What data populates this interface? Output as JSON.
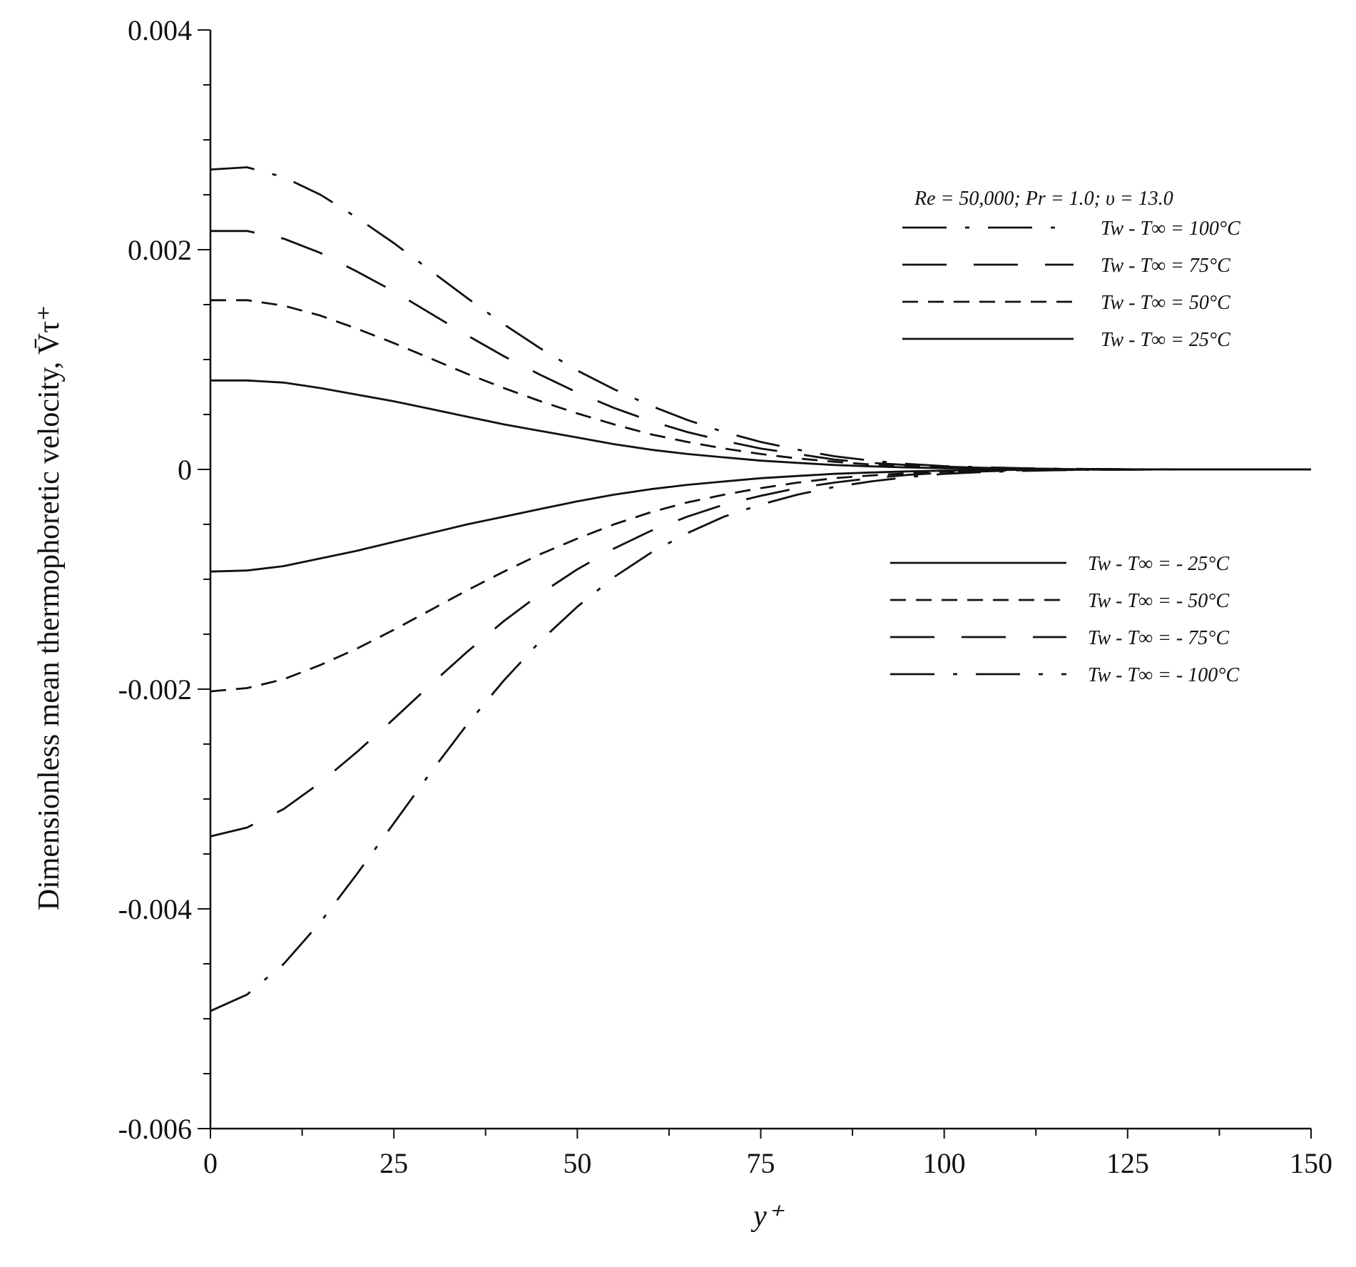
{
  "chart_data": {
    "type": "line",
    "title": "",
    "xlabel": "y⁺",
    "ylabel": "Dimensionless mean thermophoretic velocity, V̄τ⁺",
    "xlim": [
      0,
      150
    ],
    "ylim": [
      -0.006,
      0.004
    ],
    "x_ticks": [
      "0",
      "25",
      "50",
      "75",
      "100",
      "125",
      "150"
    ],
    "y_ticks": [
      "0.004",
      "0.002",
      "0",
      "-0.002",
      "-0.004",
      "-0.006"
    ],
    "grid": false,
    "legend_title": "Re = 50,000; Pr = 1.0; υ = 13.0",
    "x": [
      0,
      5,
      10,
      15,
      20,
      25,
      30,
      35,
      40,
      45,
      50,
      55,
      60,
      65,
      70,
      75,
      80,
      85,
      90,
      95,
      100,
      105,
      110,
      115,
      120,
      125,
      130,
      135,
      140,
      145,
      150
    ],
    "series": [
      {
        "name": "Tw - T∞ = 100°C",
        "style": "dash-dot",
        "values": [
          0.00273,
          0.00275,
          0.00266,
          0.0025,
          0.00229,
          0.00206,
          0.00181,
          0.00156,
          0.00132,
          0.0011,
          0.0009,
          0.00073,
          0.00058,
          0.00045,
          0.00034,
          0.00025,
          0.00018,
          0.00012,
          8e-05,
          5e-05,
          3e-05,
          2e-05,
          1.2e-05,
          7e-06,
          4e-06,
          2e-06,
          1e-06,
          0,
          0,
          0,
          0
        ]
      },
      {
        "name": "Tw - T∞ = 75°C",
        "style": "long-dash",
        "values": [
          0.00217,
          0.00217,
          0.0021,
          0.00197,
          0.0018,
          0.00162,
          0.00142,
          0.00122,
          0.00103,
          0.00086,
          0.0007,
          0.00056,
          0.00044,
          0.00034,
          0.00026,
          0.00019,
          0.00014,
          9e-05,
          6e-05,
          4e-05,
          2.5e-05,
          1.5e-05,
          9e-06,
          5e-06,
          3e-06,
          1e-06,
          0,
          0,
          0,
          0,
          0
        ]
      },
      {
        "name": "Tw - T∞ = 50°C",
        "style": "dash",
        "values": [
          0.00154,
          0.00154,
          0.00149,
          0.0014,
          0.00128,
          0.00115,
          0.00101,
          0.00087,
          0.00074,
          0.00062,
          0.00051,
          0.00041,
          0.00032,
          0.00025,
          0.00019,
          0.00014,
          0.0001,
          7e-05,
          4.5e-05,
          3e-05,
          1.8e-05,
          1.1e-05,
          6e-06,
          3e-06,
          2e-06,
          1e-06,
          0,
          0,
          0,
          0,
          0
        ]
      },
      {
        "name": "Tw - T∞ = 25°C",
        "style": "solid",
        "values": [
          0.00081,
          0.00081,
          0.00079,
          0.00074,
          0.00068,
          0.00062,
          0.00055,
          0.00048,
          0.00041,
          0.00035,
          0.00029,
          0.00023,
          0.00018,
          0.00014,
          0.00011,
          8e-05,
          6e-05,
          4e-05,
          2.8e-05,
          1.8e-05,
          1.1e-05,
          7e-06,
          4e-06,
          2e-06,
          1e-06,
          0,
          0,
          0,
          0,
          0,
          0
        ]
      },
      {
        "name": "Tw - T∞ = - 25°C",
        "style": "solid",
        "values": [
          -0.00093,
          -0.00092,
          -0.00088,
          -0.00081,
          -0.00074,
          -0.00066,
          -0.00058,
          -0.0005,
          -0.00043,
          -0.00036,
          -0.00029,
          -0.00023,
          -0.00018,
          -0.00014,
          -0.00011,
          -8e-05,
          -6e-05,
          -4e-05,
          -2.8e-05,
          -1.8e-05,
          -1.1e-05,
          -7e-06,
          -4e-06,
          -2e-06,
          -1e-06,
          0,
          0,
          0,
          0,
          0,
          0
        ]
      },
      {
        "name": "Tw - T∞ = - 50°C",
        "style": "dash",
        "values": [
          -0.00202,
          -0.00199,
          -0.00191,
          -0.00178,
          -0.00163,
          -0.00146,
          -0.00128,
          -0.0011,
          -0.00093,
          -0.00077,
          -0.00063,
          -0.0005,
          -0.00039,
          -0.0003,
          -0.00023,
          -0.00017,
          -0.00012,
          -8e-05,
          -5.5e-05,
          -3.5e-05,
          -2.2e-05,
          -1.3e-05,
          -8e-06,
          -4e-06,
          -2e-06,
          -1e-06,
          0,
          0,
          0,
          0,
          0
        ]
      },
      {
        "name": "Tw - T∞ = - 75°C",
        "style": "long-dash",
        "values": [
          -0.00334,
          -0.00326,
          -0.00309,
          -0.00285,
          -0.00257,
          -0.00227,
          -0.00196,
          -0.00166,
          -0.00138,
          -0.00113,
          -0.00091,
          -0.00072,
          -0.00056,
          -0.00043,
          -0.00032,
          -0.00024,
          -0.00017,
          -0.00012,
          -8e-05,
          -5e-05,
          -3e-05,
          -1.8e-05,
          -1e-05,
          -6e-06,
          -3e-06,
          -2e-06,
          -1e-06,
          0,
          0,
          0,
          0
        ]
      },
      {
        "name": "Tw - T∞ = - 100°C",
        "style": "dash-dot",
        "values": [
          -0.00493,
          -0.00478,
          -0.0045,
          -0.00412,
          -0.00368,
          -0.00322,
          -0.00276,
          -0.00232,
          -0.00192,
          -0.00156,
          -0.00125,
          -0.00098,
          -0.00076,
          -0.00058,
          -0.00043,
          -0.00032,
          -0.00023,
          -0.00016,
          -0.00011,
          -7e-05,
          -4e-05,
          -2.5e-05,
          -1.5e-05,
          -8e-06,
          -4e-06,
          -2e-06,
          -1e-06,
          0,
          0,
          0,
          0
        ]
      }
    ],
    "legend_groups": [
      {
        "placement": "upper-right",
        "entries": [
          0,
          1,
          2,
          3
        ]
      },
      {
        "placement": "lower-right",
        "entries": [
          4,
          5,
          6,
          7
        ]
      }
    ],
    "line_color": "#111111"
  }
}
